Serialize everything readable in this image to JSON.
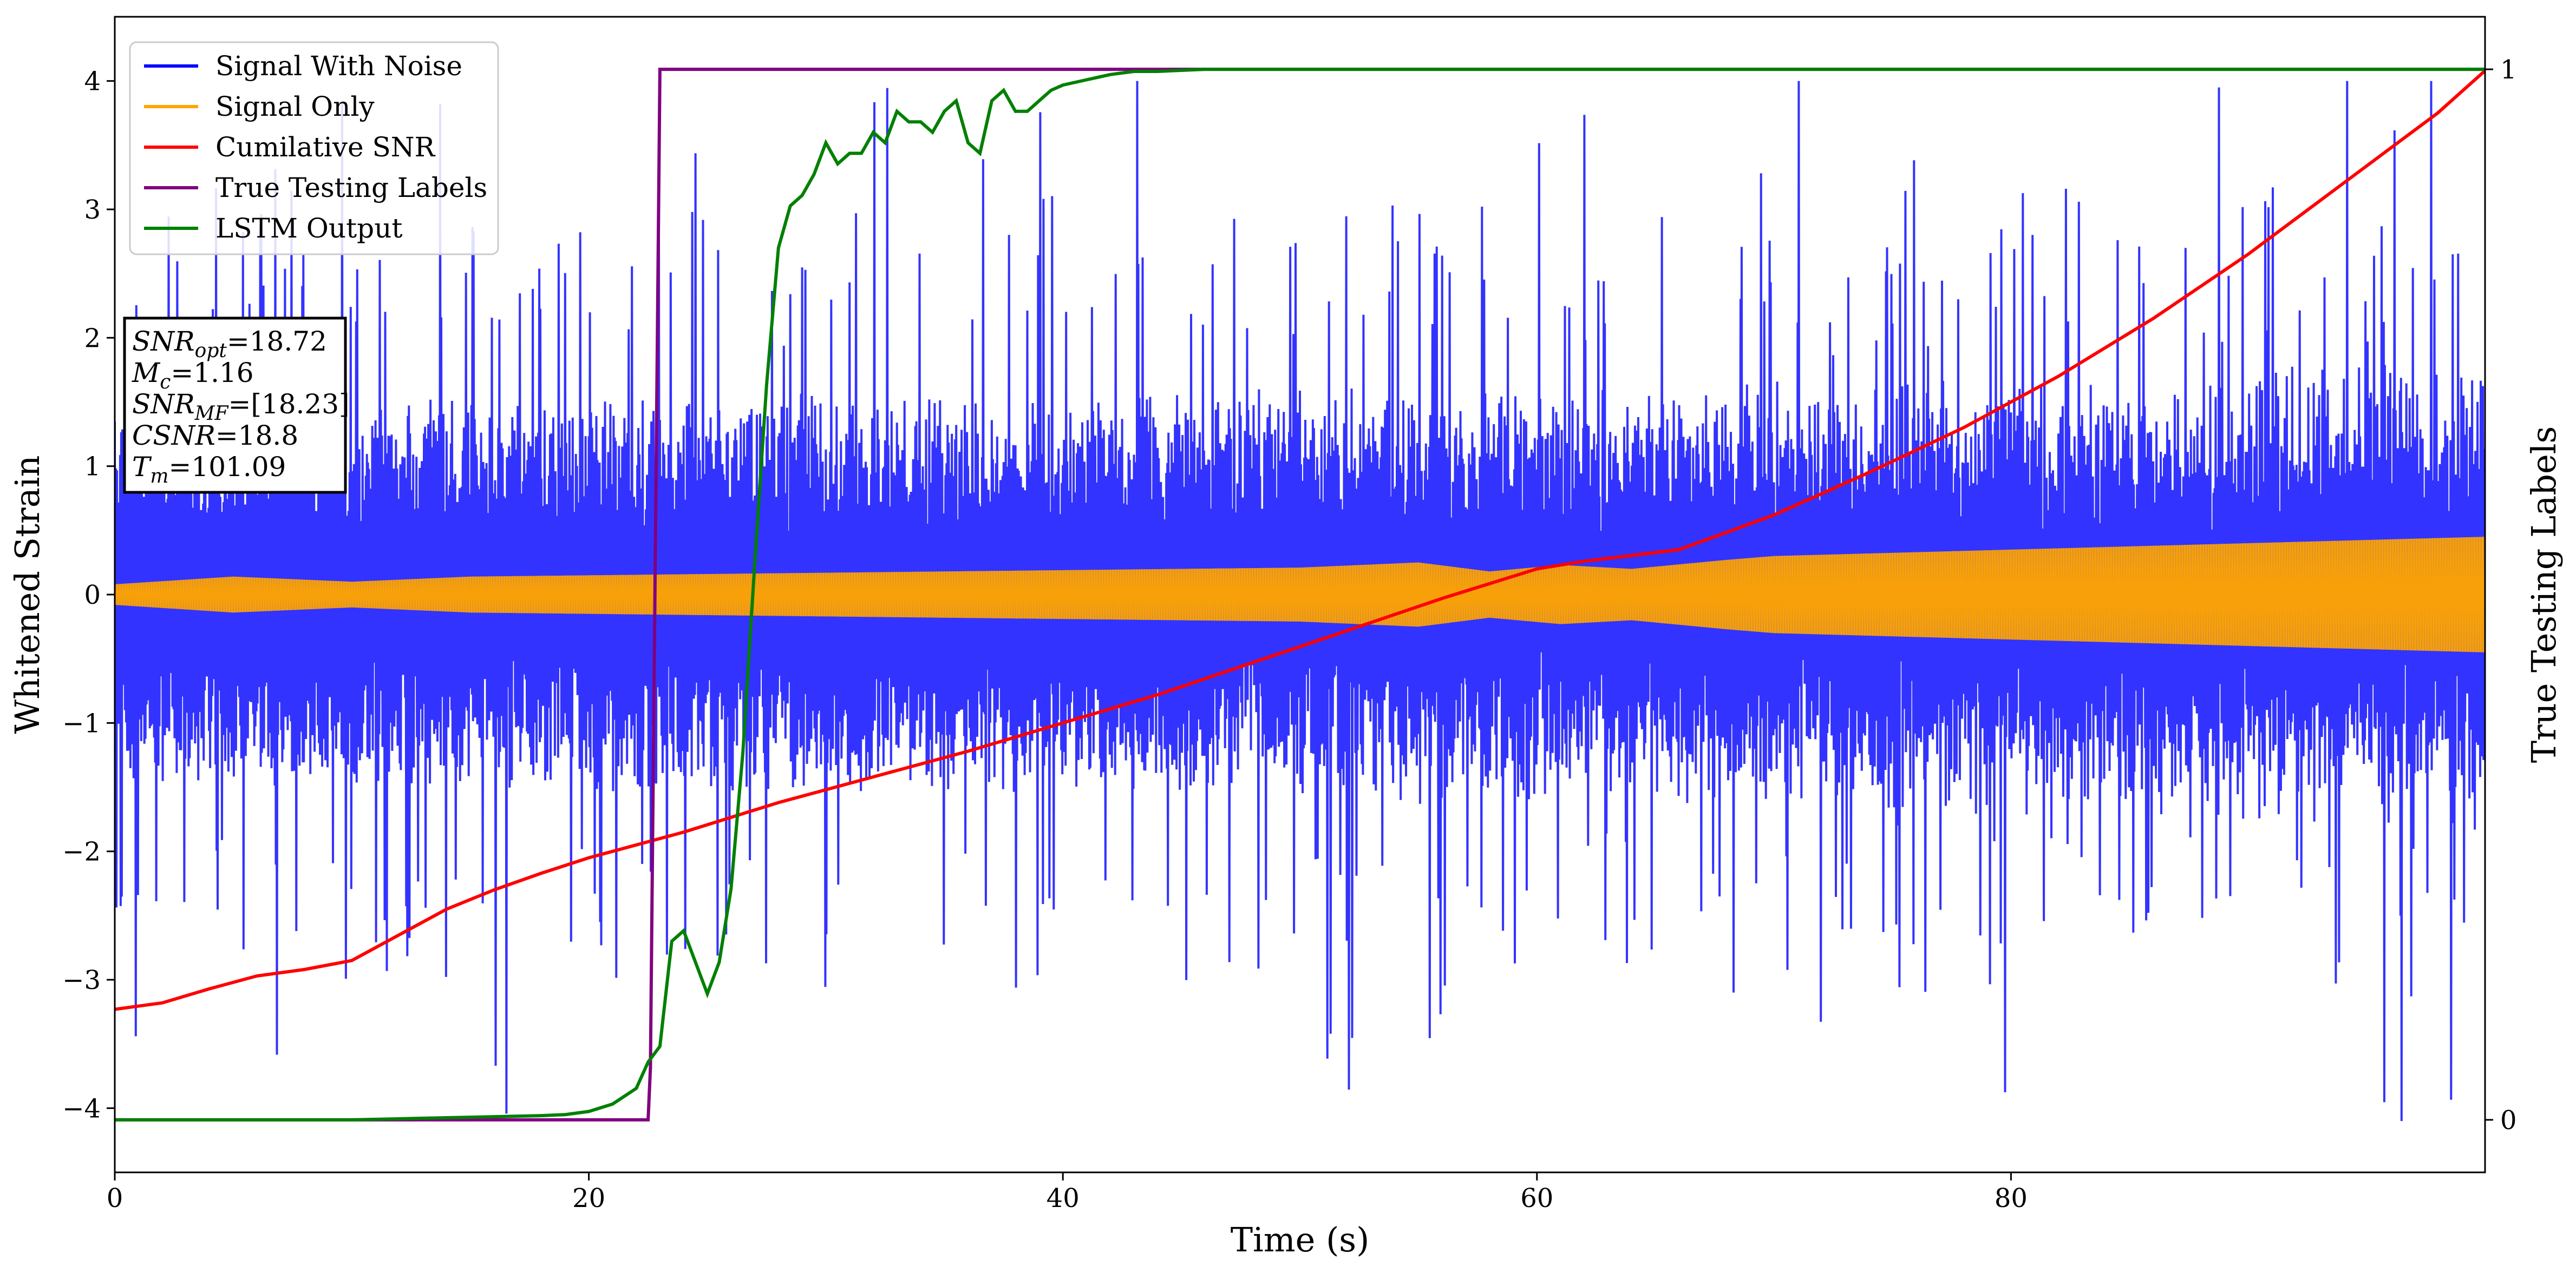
{
  "chart_data": {
    "type": "line",
    "xlabel": "Time (s)",
    "ylabel": "Whitened Strain",
    "y2label": "True Testing Labels",
    "xlim": [
      0,
      100
    ],
    "ylim": [
      -4.5,
      4.5
    ],
    "y2lim": [
      -0.05,
      1.05
    ],
    "x_ticks": [
      0,
      20,
      40,
      60,
      80
    ],
    "x_tick_labels": [
      "0",
      "20",
      "40",
      "60",
      "80"
    ],
    "y_ticks": [
      -4,
      -3,
      -2,
      -1,
      0,
      1,
      2,
      3,
      4
    ],
    "y_tick_labels": [
      "−4",
      "−3",
      "−2",
      "−1",
      "0",
      "1",
      "2",
      "3",
      "4"
    ],
    "y2_ticks": [
      0,
      1
    ],
    "y2_tick_labels": [
      "0",
      "1"
    ],
    "legend_position": "top-left",
    "grid": false,
    "series": [
      {
        "name": "Signal With Noise",
        "axis": "left",
        "color": "#0000ff",
        "kind": "noise-band",
        "typical_amplitude": 1.4,
        "max_positive": 4.0,
        "min_negative": -4.1
      },
      {
        "name": "Signal Only",
        "axis": "left",
        "color": "#ffa500",
        "kind": "envelope",
        "x": [
          0,
          5,
          10,
          15,
          20,
          30,
          40,
          50,
          55,
          58,
          61,
          64,
          68,
          70,
          80,
          90,
          100
        ],
        "envelope": [
          0.08,
          0.14,
          0.1,
          0.14,
          0.15,
          0.17,
          0.19,
          0.21,
          0.25,
          0.18,
          0.23,
          0.2,
          0.27,
          0.3,
          0.35,
          0.4,
          0.45
        ]
      },
      {
        "name": "Cumilative SNR",
        "axis": "left",
        "color": "#ff0000",
        "x": [
          0,
          2,
          4,
          6,
          8,
          10,
          12,
          14,
          16,
          18,
          20,
          24,
          28,
          32,
          36,
          40,
          44,
          48,
          52,
          56,
          60,
          62,
          66,
          70,
          74,
          78,
          82,
          86,
          90,
          94,
          98,
          100
        ],
        "y": [
          -3.23,
          -3.18,
          -3.07,
          -2.97,
          -2.92,
          -2.85,
          -2.65,
          -2.45,
          -2.3,
          -2.17,
          -2.05,
          -1.85,
          -1.62,
          -1.42,
          -1.22,
          -1.0,
          -0.78,
          -0.53,
          -0.28,
          -0.03,
          0.2,
          0.26,
          0.35,
          0.62,
          0.95,
          1.3,
          1.7,
          2.15,
          2.65,
          3.2,
          3.75,
          4.08
        ]
      },
      {
        "name": "True Testing Labels",
        "axis": "right",
        "color": "#800080",
        "x": [
          0,
          22.5,
          22.6,
          23.0,
          100
        ],
        "y": [
          0,
          0,
          0.05,
          1,
          1
        ]
      },
      {
        "name": "LSTM Output",
        "axis": "right",
        "color": "#008000",
        "x": [
          0,
          10,
          12,
          14,
          16,
          18,
          19,
          20,
          21,
          22,
          22.5,
          23,
          23.5,
          24,
          25,
          25.5,
          26,
          26.5,
          27,
          27.5,
          28,
          28.5,
          29,
          29.5,
          30,
          30.5,
          31,
          31.5,
          32,
          32.5,
          33,
          33.5,
          34,
          34.5,
          35,
          35.5,
          36,
          36.5,
          37,
          37.5,
          38,
          38.5,
          39,
          39.5,
          40,
          41,
          42,
          43,
          44,
          45,
          46,
          48,
          50,
          100
        ],
        "y": [
          0,
          0,
          0.001,
          0.002,
          0.003,
          0.004,
          0.005,
          0.008,
          0.015,
          0.03,
          0.055,
          0.07,
          0.17,
          0.18,
          0.12,
          0.15,
          0.22,
          0.35,
          0.53,
          0.7,
          0.83,
          0.87,
          0.88,
          0.9,
          0.93,
          0.91,
          0.92,
          0.92,
          0.94,
          0.93,
          0.96,
          0.95,
          0.95,
          0.94,
          0.96,
          0.97,
          0.93,
          0.92,
          0.97,
          0.98,
          0.96,
          0.96,
          0.97,
          0.98,
          0.985,
          0.99,
          0.995,
          0.998,
          0.998,
          0.999,
          1.0,
          1.0,
          1.0,
          1.0
        ]
      }
    ],
    "annotation": {
      "lines": [
        {
          "main": "SNR",
          "sub": "opt",
          "value": "=18.72"
        },
        {
          "main": "M",
          "sub": "c",
          "value": "=1.16"
        },
        {
          "main": "SNR",
          "sub": "MF",
          "value": "=[18.23]"
        },
        {
          "main": "CSNR",
          "sub": "",
          "value": "=18.8"
        },
        {
          "main": "T",
          "sub": "m",
          "value": "=101.09"
        }
      ]
    }
  }
}
